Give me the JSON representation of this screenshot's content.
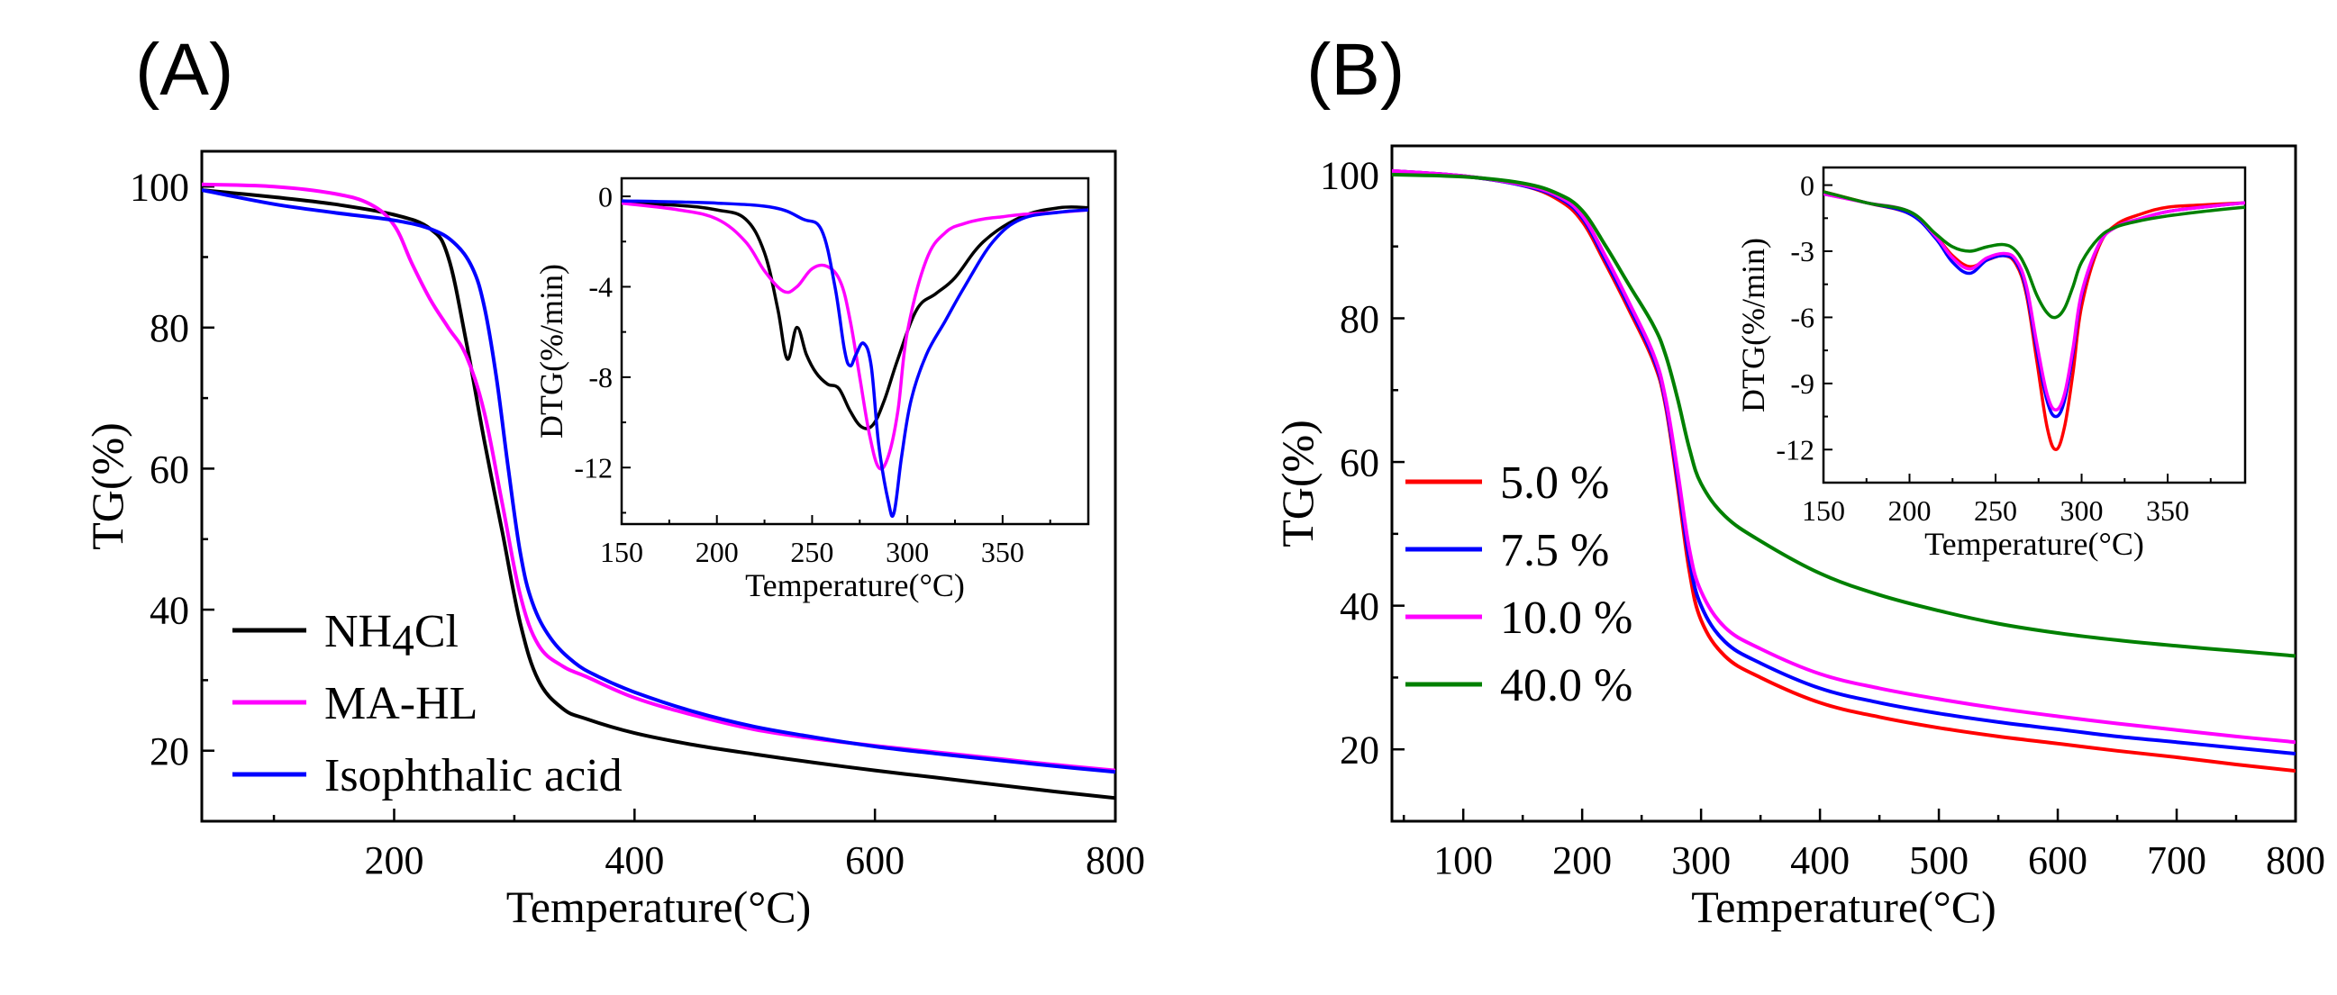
{
  "chart_data": [
    {
      "id": "A",
      "type": "line",
      "panel_label": "(A)",
      "xlabel": "Temperature(°C)",
      "ylabel": "TG(%)",
      "xlim": [
        40,
        800
      ],
      "ylim": [
        10,
        105
      ],
      "xticks": [
        200,
        400,
        600,
        800
      ],
      "yticks": [
        20,
        40,
        60,
        80,
        100
      ],
      "legend": "bottom-left",
      "series": [
        {
          "name": "NH4Cl",
          "color": "#000000",
          "x": [
            40,
            100,
            150,
            200,
            230,
            245,
            260,
            275,
            290,
            305,
            320,
            340,
            360,
            400,
            450,
            500,
            550,
            600,
            650,
            700,
            750,
            800
          ],
          "y": [
            99.5,
            98.5,
            97.5,
            96,
            94,
            90,
            78,
            64,
            51,
            38,
            30,
            26,
            24.5,
            22.5,
            20.8,
            19.5,
            18.3,
            17.2,
            16.2,
            15.2,
            14.2,
            13.3
          ]
        },
        {
          "name": "MA-HL",
          "color": "#ff00ff",
          "x": [
            40,
            100,
            150,
            180,
            200,
            215,
            230,
            245,
            260,
            275,
            290,
            305,
            320,
            340,
            360,
            400,
            450,
            500,
            550,
            600,
            650,
            700,
            750,
            800
          ],
          "y": [
            100.3,
            100,
            99,
            97.5,
            94.5,
            89,
            84,
            80,
            76,
            68,
            55,
            42,
            35,
            32,
            30.5,
            27.5,
            25,
            23,
            21.7,
            20.7,
            19.8,
            18.9,
            18,
            17.2
          ]
        },
        {
          "name": "Isophthalic acid",
          "color": "#0000ff",
          "x": [
            40,
            100,
            150,
            200,
            230,
            250,
            265,
            275,
            285,
            295,
            305,
            315,
            330,
            350,
            370,
            400,
            450,
            500,
            550,
            600,
            650,
            700,
            750,
            800
          ],
          "y": [
            99.5,
            97.5,
            96.3,
            95.2,
            94,
            92,
            88.5,
            83,
            73,
            60,
            48,
            41,
            36,
            32.5,
            30.5,
            28.3,
            25.5,
            23.4,
            21.9,
            20.6,
            19.6,
            18.7,
            17.8,
            17
          ]
        }
      ],
      "inset": {
        "xlabel": "Temperature(°C)",
        "ylabel": "DTG(%/min)",
        "xlim": [
          150,
          395
        ],
        "ylim": [
          -14.5,
          0.8
        ],
        "xticks": [
          150,
          200,
          250,
          300,
          350
        ],
        "yticks": [
          0,
          -4,
          -8,
          -12
        ],
        "series": [
          {
            "name": "NH4Cl",
            "color": "#000000",
            "x": [
              150,
              180,
              200,
              215,
              225,
              232,
              237,
              242,
              247,
              252,
              258,
              264,
              270,
              276,
              282,
              288,
              295,
              305,
              315,
              325,
              340,
              360,
              380,
              395
            ],
            "y": [
              -0.3,
              -0.4,
              -0.6,
              -1.0,
              -2.5,
              -5.0,
              -7.2,
              -5.8,
              -7.0,
              -7.8,
              -8.3,
              -8.5,
              -9.5,
              -10.2,
              -10.1,
              -9.0,
              -7.2,
              -5.0,
              -4.3,
              -3.6,
              -2.0,
              -0.9,
              -0.5,
              -0.5
            ]
          },
          {
            "name": "MA-HL",
            "color": "#ff00ff",
            "x": [
              150,
              180,
              200,
              215,
              225,
              235,
              242,
              250,
              258,
              265,
              270,
              275,
              280,
              285,
              290,
              295,
              300,
              310,
              320,
              330,
              340,
              350,
              360,
              380,
              395
            ],
            "y": [
              -0.3,
              -0.6,
              -1.0,
              -2.0,
              -3.3,
              -4.2,
              -4.0,
              -3.2,
              -3.1,
              -3.8,
              -5.5,
              -8.0,
              -10.5,
              -12.0,
              -11.5,
              -9.5,
              -6.0,
              -2.8,
              -1.6,
              -1.2,
              -1.0,
              -0.9,
              -0.8,
              -0.7,
              -0.6
            ]
          },
          {
            "name": "Isophthalic acid",
            "color": "#0000ff",
            "x": [
              150,
              200,
              230,
              245,
              255,
              262,
              267,
              270,
              273,
              277,
              281,
              285,
              290,
              293,
              297,
              302,
              310,
              320,
              330,
              345,
              360,
              380,
              395
            ],
            "y": [
              -0.2,
              -0.3,
              -0.5,
              -1.0,
              -1.5,
              -4.0,
              -6.8,
              -7.5,
              -7.0,
              -6.5,
              -7.5,
              -11.0,
              -13.5,
              -14.0,
              -11.5,
              -9.0,
              -7.0,
              -5.5,
              -4.0,
              -2.0,
              -1.0,
              -0.7,
              -0.6
            ]
          }
        ]
      }
    },
    {
      "id": "B",
      "type": "line",
      "panel_label": "(B)",
      "xlabel": "Temperature(°C)",
      "ylabel": "TG(%)",
      "xlim": [
        40,
        800
      ],
      "ylim": [
        10,
        104
      ],
      "xticks": [
        100,
        200,
        300,
        400,
        500,
        600,
        700,
        800
      ],
      "yticks": [
        20,
        40,
        60,
        80,
        100
      ],
      "legend": "middle-left",
      "series": [
        {
          "name": "5.0 %",
          "color": "#ff0000",
          "x": [
            40,
            100,
            150,
            180,
            200,
            220,
            240,
            260,
            270,
            280,
            290,
            300,
            320,
            350,
            400,
            450,
            500,
            550,
            600,
            650,
            700,
            750,
            800
          ],
          "y": [
            100.5,
            99.8,
            98.5,
            96.5,
            93.5,
            87.5,
            81,
            74,
            68,
            57,
            45,
            38,
            33,
            30,
            26.5,
            24.5,
            23,
            21.8,
            20.8,
            19.8,
            18.9,
            17.9,
            17
          ]
        },
        {
          "name": "7.5 %",
          "color": "#0000ff",
          "x": [
            40,
            100,
            150,
            180,
            200,
            220,
            240,
            260,
            270,
            280,
            290,
            300,
            320,
            350,
            400,
            450,
            500,
            550,
            600,
            650,
            700,
            750,
            800
          ],
          "y": [
            100.5,
            99.8,
            98.5,
            96.8,
            94,
            88,
            81.5,
            74.5,
            68.5,
            58,
            46.5,
            40,
            35,
            32,
            28.5,
            26.5,
            25,
            23.8,
            22.8,
            21.8,
            21,
            20.2,
            19.4
          ]
        },
        {
          "name": "10.0 %",
          "color": "#ff00ff",
          "x": [
            40,
            100,
            150,
            180,
            200,
            220,
            240,
            260,
            270,
            280,
            290,
            300,
            320,
            350,
            400,
            450,
            500,
            550,
            600,
            650,
            700,
            750,
            800
          ],
          "y": [
            100.5,
            99.8,
            98.6,
            97,
            94.3,
            88.5,
            82,
            75,
            69,
            59,
            48,
            42,
            37,
            34,
            30.5,
            28.5,
            27,
            25.7,
            24.6,
            23.6,
            22.7,
            21.8,
            21
          ]
        },
        {
          "name": "40.0 %",
          "color": "#008000",
          "x": [
            40,
            100,
            150,
            180,
            200,
            220,
            240,
            260,
            270,
            280,
            290,
            300,
            320,
            350,
            400,
            450,
            500,
            550,
            600,
            650,
            700,
            750,
            800
          ],
          "y": [
            100,
            99.7,
            98.8,
            97.3,
            95,
            90,
            84.5,
            79,
            75,
            69,
            62,
            57,
            52.5,
            49,
            44.5,
            41.5,
            39.3,
            37.5,
            36.2,
            35.2,
            34.4,
            33.7,
            33
          ]
        }
      ],
      "inset": {
        "xlabel": "Temperature(°C)",
        "ylabel": "DTG(%/min)",
        "xlim": [
          150,
          395
        ],
        "ylim": [
          -13.5,
          0.8
        ],
        "xticks": [
          150,
          200,
          250,
          300,
          350
        ],
        "yticks": [
          0,
          -3,
          -6,
          -9,
          -12
        ],
        "series": [
          {
            "name": "5.0 %",
            "color": "#ff0000",
            "x": [
              150,
              175,
              200,
              215,
              225,
              235,
              245,
              255,
              262,
              268,
              274,
              280,
              285,
              290,
              295,
              300,
              310,
              320,
              335,
              350,
              370,
              395
            ],
            "y": [
              -0.3,
              -0.8,
              -1.3,
              -2.3,
              -3.2,
              -3.7,
              -3.4,
              -3.2,
              -3.6,
              -5.0,
              -8.0,
              -11.0,
              -12.0,
              -11.0,
              -8.5,
              -5.5,
              -2.8,
              -1.8,
              -1.3,
              -1.0,
              -0.9,
              -0.8
            ]
          },
          {
            "name": "7.5 %",
            "color": "#0000ff",
            "x": [
              150,
              175,
              200,
              215,
              225,
              235,
              245,
              255,
              262,
              268,
              274,
              280,
              285,
              290,
              295,
              300,
              310,
              320,
              335,
              350,
              370,
              395
            ],
            "y": [
              -0.4,
              -0.8,
              -1.3,
              -2.4,
              -3.5,
              -4.0,
              -3.4,
              -3.2,
              -3.5,
              -4.8,
              -7.5,
              -9.8,
              -10.5,
              -9.8,
              -7.6,
              -5.0,
              -2.7,
              -1.9,
              -1.5,
              -1.2,
              -1.0,
              -0.8
            ]
          },
          {
            "name": "10.0 %",
            "color": "#ff00ff",
            "x": [
              150,
              175,
              200,
              215,
              225,
              235,
              245,
              255,
              262,
              268,
              274,
              280,
              285,
              290,
              295,
              300,
              310,
              320,
              335,
              350,
              370,
              395
            ],
            "y": [
              -0.4,
              -0.8,
              -1.2,
              -2.3,
              -3.3,
              -3.8,
              -3.3,
              -3.1,
              -3.4,
              -4.6,
              -7.2,
              -9.5,
              -10.2,
              -9.5,
              -7.4,
              -4.9,
              -2.7,
              -1.9,
              -1.5,
              -1.2,
              -1.0,
              -0.8
            ]
          },
          {
            "name": "40.0 %",
            "color": "#008000",
            "x": [
              150,
              175,
              200,
              215,
              225,
              235,
              245,
              255,
              262,
              268,
              274,
              280,
              285,
              290,
              295,
              300,
              310,
              320,
              335,
              350,
              370,
              395
            ],
            "y": [
              -0.3,
              -0.8,
              -1.2,
              -2.2,
              -2.8,
              -3.0,
              -2.8,
              -2.7,
              -3.0,
              -3.8,
              -5.0,
              -5.8,
              -6.0,
              -5.6,
              -4.6,
              -3.5,
              -2.4,
              -1.9,
              -1.6,
              -1.4,
              -1.2,
              -1.0
            ]
          }
        ]
      }
    }
  ]
}
